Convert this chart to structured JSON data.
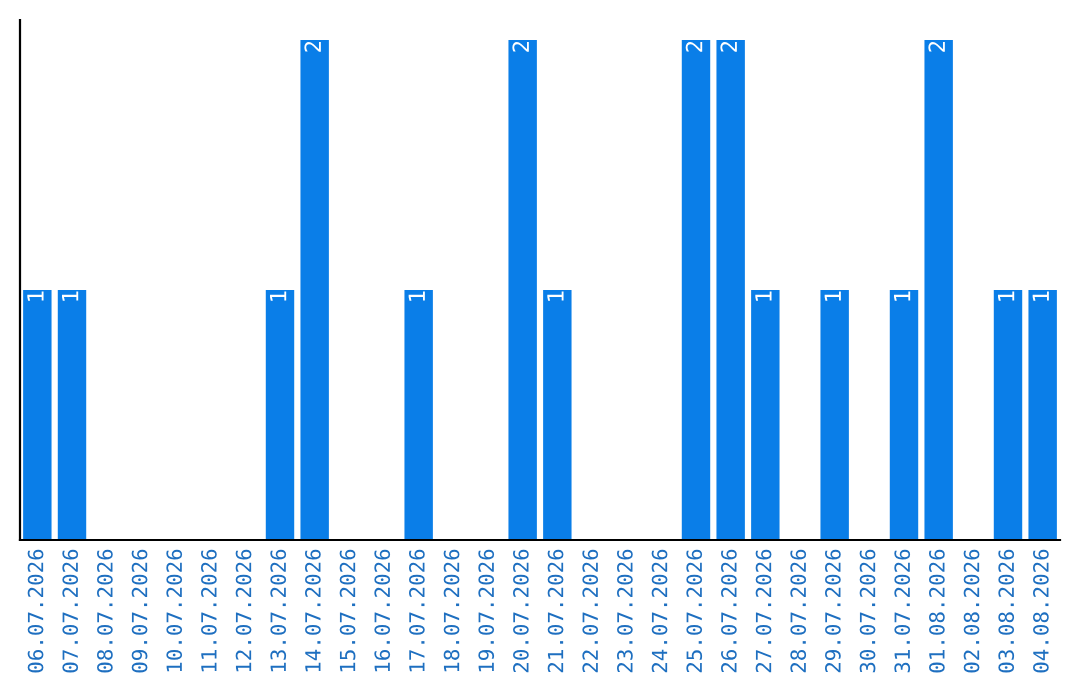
{
  "chart_data": {
    "type": "bar",
    "categories": [
      "06.07.2026",
      "07.07.2026",
      "08.07.2026",
      "09.07.2026",
      "10.07.2026",
      "11.07.2026",
      "12.07.2026",
      "13.07.2026",
      "14.07.2026",
      "15.07.2026",
      "16.07.2026",
      "17.07.2026",
      "18.07.2026",
      "19.07.2026",
      "20.07.2026",
      "21.07.2026",
      "22.07.2026",
      "23.07.2026",
      "24.07.2026",
      "25.07.2026",
      "26.07.2026",
      "27.07.2026",
      "28.07.2026",
      "29.07.2026",
      "30.07.2026",
      "31.07.2026",
      "01.08.2026",
      "02.08.2026",
      "03.08.2026",
      "04.08.2026"
    ],
    "values": [
      1,
      1,
      0,
      0,
      0,
      0,
      0,
      1,
      2,
      0,
      0,
      1,
      0,
      0,
      2,
      1,
      0,
      0,
      0,
      2,
      2,
      1,
      0,
      1,
      0,
      1,
      2,
      0,
      1,
      1
    ],
    "value_labels": [
      "1",
      "1",
      null,
      null,
      null,
      null,
      null,
      "1",
      "2",
      null,
      null,
      "1",
      null,
      null,
      "2",
      "1",
      null,
      null,
      null,
      "2",
      "2",
      "1",
      null,
      "1",
      null,
      "1",
      "2",
      null,
      "1",
      "1"
    ],
    "color": "#0a7ee8",
    "tick_labels": "x",
    "grid": false,
    "legend": false
  }
}
